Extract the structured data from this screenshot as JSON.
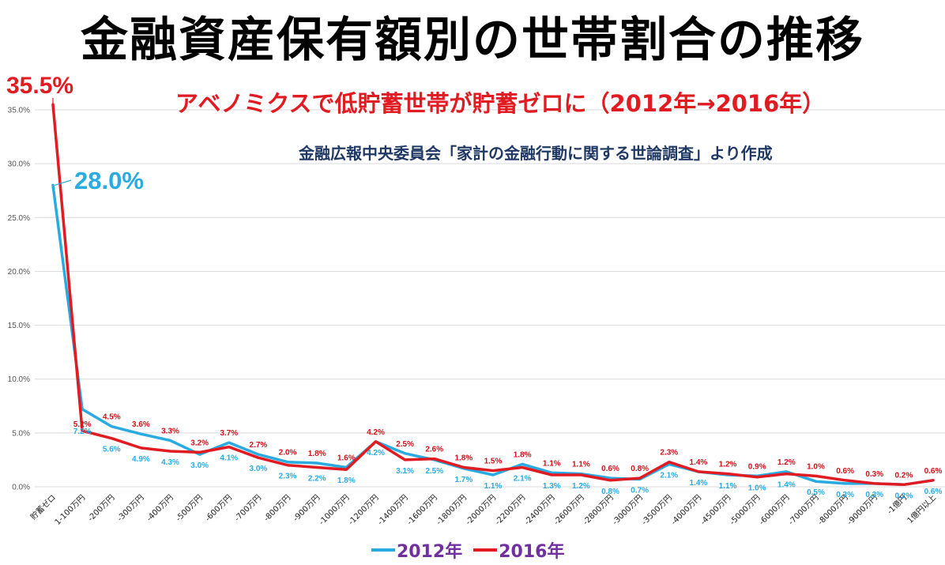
{
  "page": {
    "title": "金融資産保有額別の世帯割合の推移",
    "annotation": "アベノミクスで低貯蓄世帯が貯蓄ゼロに（2012年→2016年）",
    "source": "金融広報中央委員会「家計の金融行動に関する世論調査」より作成",
    "peak_2016_label": "35.5%",
    "peak_2012_label": "28.0%"
  },
  "colors": {
    "series_2012": "#29abe2",
    "series_2016": "#e01b22",
    "label_2012": "#29abe2",
    "label_2016": "#d0121b",
    "legend_text": "#7030a0",
    "grid": "#d9d9d9"
  },
  "chart_data": {
    "type": "line",
    "title": "金融資産保有額別の世帯割合の推移",
    "xlabel": "",
    "ylabel": "",
    "ylim": [
      0,
      35
    ],
    "yticks": [
      "0.0%",
      "5.0%",
      "10.0%",
      "15.0%",
      "20.0%",
      "25.0%",
      "30.0%",
      "35.0%"
    ],
    "grid": true,
    "legend_position": "bottom",
    "categories": [
      "貯蓄ゼロ",
      "1-100万円",
      "-200万円",
      "-300万円",
      "-400万円",
      "-500万円",
      "-600万円",
      "-700万円",
      "-800万円",
      "-900万円",
      "-1000万円",
      "-1200万円",
      "-1400万円",
      "-1600万円",
      "-1800万円",
      "-2000万円",
      "-2200万円",
      "-2400万円",
      "-2600万円",
      "-2800万円",
      "-3000万円",
      "-3500万円",
      "-4000万円",
      "-4500万円",
      "-5000万円",
      "-6000万円",
      "-7000万円",
      "-8000万円",
      "-9000万円",
      "-1億円",
      "1億円以上"
    ],
    "series": [
      {
        "name": "2012年",
        "values": [
          28.0,
          7.2,
          5.6,
          4.9,
          4.3,
          3.0,
          4.1,
          3.0,
          2.3,
          2.2,
          1.8,
          4.2,
          3.1,
          2.5,
          1.7,
          1.1,
          2.1,
          1.3,
          1.2,
          0.8,
          0.7,
          2.1,
          1.4,
          1.1,
          1.0,
          1.4,
          0.5,
          0.3,
          0.3,
          0.2,
          0.6
        ],
        "labels": [
          "",
          "7.2%",
          "5.6%",
          "4.9%",
          "4.3%",
          "3.0%",
          "4.1%",
          "3.0%",
          "2.3%",
          "2.2%",
          "1.8%",
          "4.2%",
          "3.1%",
          "2.5%",
          "1.7%",
          "1.1%",
          "2.1%",
          "1.3%",
          "1.2%",
          "0.8%",
          "0.7%",
          "2.1%",
          "1.4%",
          "1.1%",
          "1.0%",
          "1.4%",
          "0.5%",
          "0.3%",
          "0.3%",
          "0.2%",
          "0.6%"
        ]
      },
      {
        "name": "2016年",
        "values": [
          35.5,
          5.2,
          4.5,
          3.6,
          3.3,
          3.2,
          3.7,
          2.7,
          2.0,
          1.8,
          1.6,
          4.2,
          2.5,
          2.6,
          1.8,
          1.5,
          1.8,
          1.1,
          1.1,
          0.6,
          0.8,
          2.3,
          1.4,
          1.2,
          0.9,
          1.2,
          1.0,
          0.6,
          0.3,
          0.2,
          0.6
        ],
        "labels": [
          "",
          "5.2%",
          "4.5%",
          "3.6%",
          "3.3%",
          "3.2%",
          "3.7%",
          "2.7%",
          "2.0%",
          "1.8%",
          "1.6%",
          "4.2%",
          "2.5%",
          "2.6%",
          "1.8%",
          "1.5%",
          "1.8%",
          "1.1%",
          "1.1%",
          "0.6%",
          "0.8%",
          "2.3%",
          "1.4%",
          "1.2%",
          "0.9%",
          "1.2%",
          "1.0%",
          "0.6%",
          "0.3%",
          "0.2%",
          "0.6%"
        ]
      }
    ]
  }
}
